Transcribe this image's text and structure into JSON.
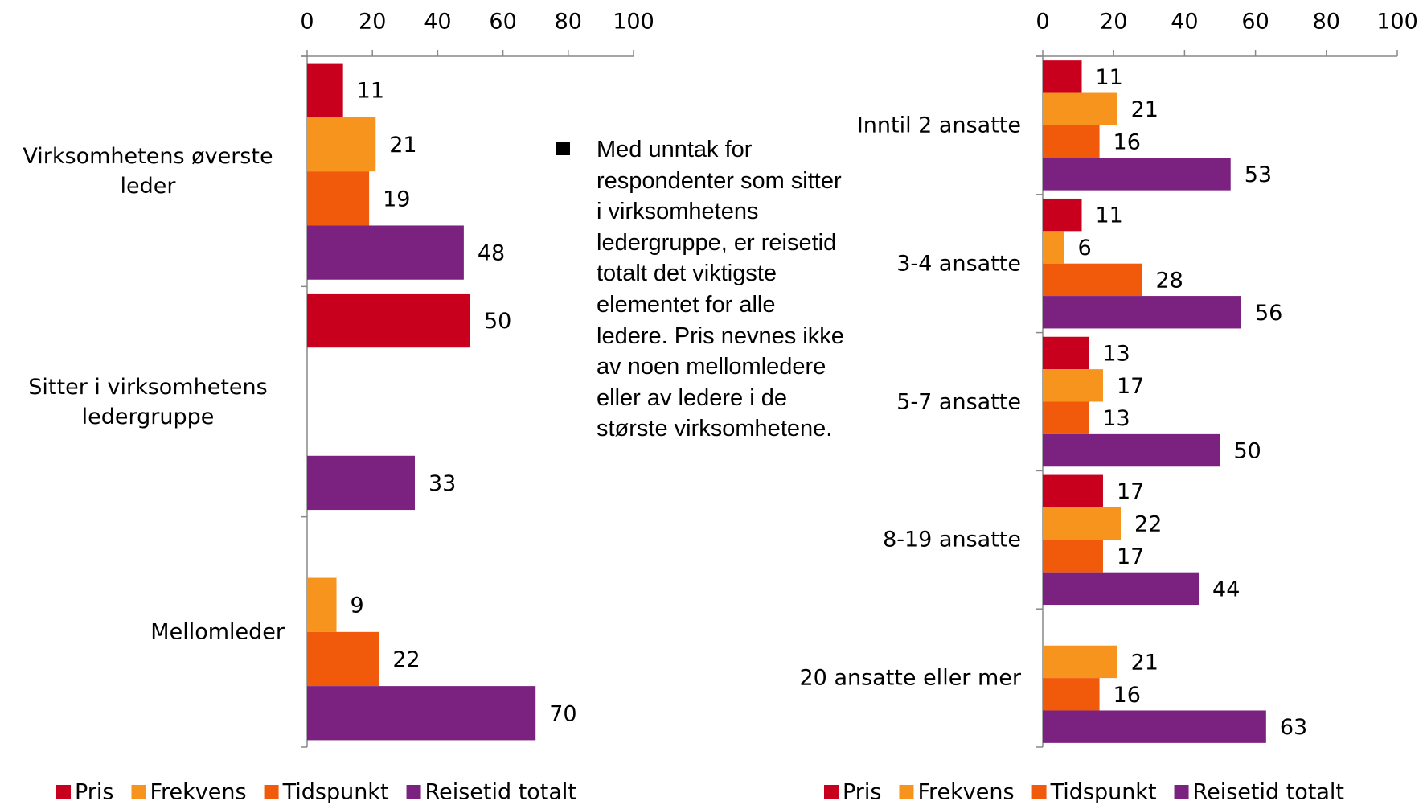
{
  "chart_data": [
    {
      "type": "bar",
      "orientation": "horizontal",
      "categories": [
        "Virksomhetens øverste leder",
        "Sitter i virksomhetens ledergruppe",
        "Mellomleder"
      ],
      "series": [
        {
          "name": "Pris",
          "color": "#c8001e",
          "values": [
            11,
            50,
            null
          ]
        },
        {
          "name": "Frekvens",
          "color": "#f7941d",
          "values": [
            21,
            null,
            9
          ]
        },
        {
          "name": "Tidspunkt",
          "color": "#f05a0a",
          "values": [
            19,
            null,
            22
          ]
        },
        {
          "name": "Reisetid totalt",
          "color": "#7b2180",
          "values": [
            48,
            33,
            70
          ]
        }
      ],
      "xlim": [
        0,
        100
      ],
      "xticks": [
        0,
        20,
        40,
        60,
        80,
        100
      ],
      "grid": false,
      "legend": "bottom"
    },
    {
      "type": "bar",
      "orientation": "horizontal",
      "categories": [
        "Inntil 2 ansatte",
        "3-4 ansatte",
        "5-7 ansatte",
        "8-19 ansatte",
        "20 ansatte eller mer"
      ],
      "series": [
        {
          "name": "Pris",
          "color": "#c8001e",
          "values": [
            11,
            11,
            13,
            17,
            null
          ]
        },
        {
          "name": "Frekvens",
          "color": "#f7941d",
          "values": [
            21,
            6,
            17,
            22,
            21
          ]
        },
        {
          "name": "Tidspunkt",
          "color": "#f05a0a",
          "values": [
            16,
            28,
            13,
            17,
            16
          ]
        },
        {
          "name": "Reisetid totalt",
          "color": "#7b2180",
          "values": [
            53,
            56,
            50,
            44,
            63
          ]
        }
      ],
      "xlim": [
        0,
        100
      ],
      "xticks": [
        0,
        20,
        40,
        60,
        80,
        100
      ],
      "grid": false,
      "legend": "bottom"
    }
  ],
  "note": {
    "text": "Med unntak for respondenter som sitter i virksomhetens ledergruppe, er reisetid totalt det viktigste elementet for alle ledere. Pris nevnes ikke av noen mellomledere eller av ledere i de største virksomhetene."
  }
}
